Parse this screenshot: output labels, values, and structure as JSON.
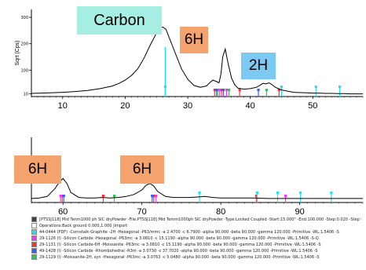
{
  "chart_data": [
    {
      "type": "line",
      "panel": "top",
      "ylabel": "Sqrt (Cps)",
      "x_ticks": [
        10,
        20,
        30,
        40,
        50
      ],
      "x_range": [
        5,
        58
      ],
      "y_ticks": [
        10,
        100,
        200,
        300
      ],
      "y_range": [
        0,
        330
      ],
      "series": [
        {
          "x": [
            5,
            8,
            10,
            12,
            14,
            16,
            18,
            19,
            20,
            21,
            22,
            23,
            24,
            25,
            25.5,
            26,
            26.5,
            27,
            28,
            29,
            30,
            31,
            32,
            33,
            33.5,
            34,
            34.5,
            35,
            35.3,
            35.6,
            36,
            36.5,
            37,
            37.5,
            38,
            39,
            40,
            41,
            41.5,
            42,
            42.5,
            43,
            43.5,
            44,
            45,
            46,
            47,
            48,
            49,
            50,
            51,
            52,
            53,
            54,
            55,
            56,
            58
          ],
          "y": [
            12,
            14,
            16,
            19,
            23,
            30,
            40,
            50,
            62,
            80,
            105,
            145,
            195,
            240,
            260,
            263,
            255,
            225,
            165,
            105,
            65,
            42,
            35,
            40,
            52,
            62,
            58,
            52,
            85,
            150,
            180,
            120,
            70,
            45,
            32,
            28,
            30,
            35,
            42,
            50,
            48,
            52,
            45,
            35,
            25,
            20,
            16,
            15,
            14,
            13,
            13,
            12,
            12,
            11,
            11,
            10,
            10
          ]
        }
      ],
      "annotations": [
        {
          "text": "Carbon",
          "x": 26
        },
        {
          "text": "6H",
          "x": 35.5
        },
        {
          "text": "2H",
          "x": 43
        }
      ],
      "reference_lines": [
        {
          "color": "#ff3030",
          "x": [
            34.3,
            35.4,
            38.3,
            44.6
          ]
        },
        {
          "color": "#22cc55",
          "x": [
            34.8,
            36.6,
            42.6
          ]
        },
        {
          "color": "#3060ff",
          "x": [
            34.6,
            35.7,
            41.3
          ]
        },
        {
          "color": "#ff33ff",
          "x": [
            35.1,
            36.2
          ]
        },
        {
          "color": "#22e0ee",
          "x": [
            26.4,
            45.0,
            50.5,
            54.3
          ]
        }
      ]
    },
    {
      "type": "line",
      "panel": "bottom",
      "x_ticks": [
        60,
        70,
        80,
        90
      ],
      "x_range": [
        56,
        98
      ],
      "y_range": [
        0,
        130
      ],
      "series": [
        {
          "x": [
            56,
            57,
            58,
            59,
            59.5,
            60,
            60.5,
            61,
            62,
            63,
            64,
            65,
            66,
            67,
            68,
            69,
            70,
            70.5,
            71,
            71.5,
            72,
            73,
            74,
            75,
            76,
            77,
            78,
            79,
            80,
            82,
            84,
            86,
            88,
            90,
            92,
            94,
            96,
            98
          ],
          "y": [
            8,
            9,
            12,
            28,
            40,
            48,
            38,
            20,
            10,
            9,
            9,
            10,
            9,
            10,
            12,
            16,
            25,
            34,
            38,
            33,
            22,
            12,
            10,
            10,
            10,
            11,
            12,
            10,
            9,
            9,
            9,
            8,
            8,
            8,
            8,
            8,
            8,
            8
          ]
        }
      ],
      "annotations": [
        {
          "text": "6H",
          "x": 60
        },
        {
          "text": "6H",
          "x": 71
        }
      ],
      "reference_lines": [
        {
          "color": "#ff3030",
          "x": [
            59.9,
            65.1,
            71.5,
            84.5
          ]
        },
        {
          "color": "#3060ff",
          "x": [
            60.1,
            71.3
          ]
        },
        {
          "color": "#ff33ff",
          "x": [
            59.7,
            71.8,
            88.2
          ]
        },
        {
          "color": "#22cc55",
          "x": [
            66.5
          ]
        },
        {
          "color": "#22e0ee",
          "x": [
            77.3,
            84.6,
            87.2,
            90.1,
            94.0
          ]
        }
      ]
    }
  ],
  "legend_rows": [
    {
      "swatch": "#444444",
      "text": "[PTSSJ118] Mid Tenm1000 ph SIC dryPowder -File:PTSSJ118] Mid Temm1000ph SIC dryPowder -Type:Locked Coupled -Start:15.000° -End:100.000 -Step:0.020 -Step time:1.s -Te"
    },
    {
      "swatch": "#ffffff",
      "text": "Operations:Back ground 0.000,1.000 |Import"
    },
    {
      "swatch": "#22e0ee",
      "text": "44-0444 (PDF) -Cornstalk-Graphite -2H -Hexagonal -P63/mmc -a 2.4700 -c 6.7900 -alpha 90.000 -beta 90.000 -gamma 120.000 -Primitive -WL:1.5406 -S"
    },
    {
      "swatch": "#ff33ff",
      "text": "29-1126 (I) -Silicon Carbide -Hexagonal -P63mc -a 3.0810 -c 15.1190 -alpha 90.000 -beta 90.000 -gamma 120.000 -Primitive -WL:1.5406 -S-Q"
    },
    {
      "swatch": "#ff3030",
      "text": "29-1131 (I) -Silicon Carbide-6H -Moissanite -P63mc -a 3.0810 -c 15.1190 -alpha 90.000 -beta 90.000 -gamma 120.000 -Primitive -WL:1.5406 -S"
    },
    {
      "swatch": "#3060ff",
      "text": "49-1428 (I) -Silicon Carbide -Rhombohedral -R3m -a 3.0730 -c 37.7020 -alpha 90.000 -beta 90.000 -gamma 120.000 -Primitive -WL:1.5406 -S"
    },
    {
      "swatch": "#22cc55",
      "text": "29-1129 (I) -Moissanite-2H, syn -Hexagonal -P63mc -a 3.0763 -c 5.0480 -alpha 90.000 -beta 90.000 -gamma 120.000 -Primitive -WL:1.5406 -S"
    }
  ]
}
